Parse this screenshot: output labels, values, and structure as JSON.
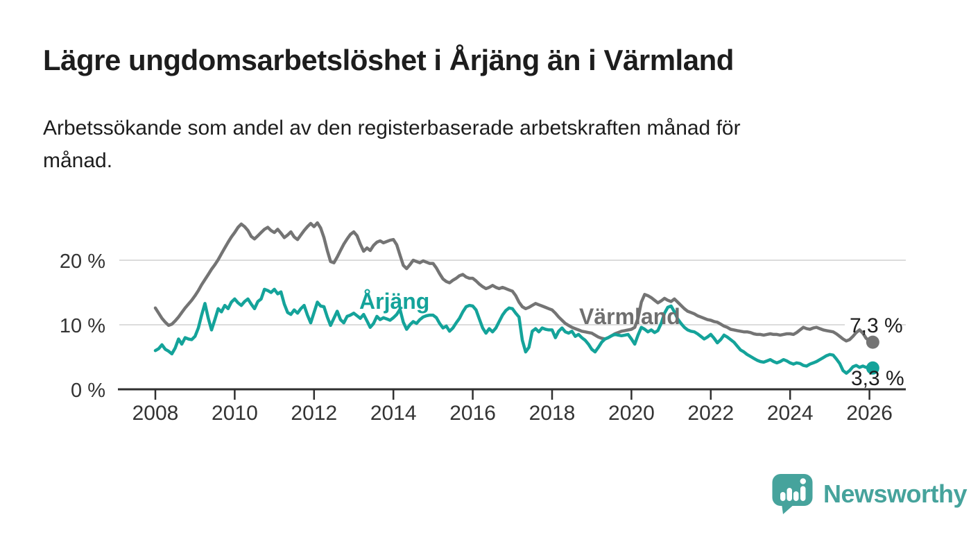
{
  "header": {
    "title": "Lägre ungdomsarbetslöshet i Årjäng än i Värmland",
    "subtitle_lines": [
      "Arbetssökande som andel av den registerbaserade arbetskraften månad för",
      "månad."
    ]
  },
  "chart_data": {
    "type": "line",
    "title": "Lägre ungdomsarbetslöshet i Årjäng än i Värmland",
    "subtitle": "Arbetssökande som andel av den registerbaserade arbetskraften månad för månad.",
    "unit": "%",
    "x_start": "2008-01",
    "x_end": "2026-02",
    "x_interval": "monthly",
    "xlim": [
      2008,
      2026.9
    ],
    "ylim": [
      0,
      27
    ],
    "grid": "horizontal-only",
    "legend_position": "inline-labels-on-chart",
    "y_ticks": [
      {
        "value": 0,
        "label": "0 %"
      },
      {
        "value": 10,
        "label": "10 %"
      },
      {
        "value": 20,
        "label": "20 %"
      }
    ],
    "x_ticks": [
      {
        "year": 2008,
        "label": "2008"
      },
      {
        "year": 2010,
        "label": "2010"
      },
      {
        "year": 2012,
        "label": "2012"
      },
      {
        "year": 2014,
        "label": "2014"
      },
      {
        "year": 2016,
        "label": "2016"
      },
      {
        "year": 2018,
        "label": "2018"
      },
      {
        "year": 2020,
        "label": "2020"
      },
      {
        "year": 2022,
        "label": "2022"
      },
      {
        "year": 2024,
        "label": "2024"
      },
      {
        "year": 2026,
        "label": "2026"
      }
    ],
    "series": [
      {
        "id": "varmland",
        "name": "Värmland",
        "color": "#747474",
        "label_color": "#6f6f6f",
        "end_label": "7,3 %",
        "last_value": 7.3,
        "values": [
          12.6,
          11.8,
          11.0,
          10.4,
          9.9,
          10.1,
          10.6,
          11.2,
          11.9,
          12.6,
          13.2,
          13.8,
          14.5,
          15.3,
          16.2,
          17.0,
          17.8,
          18.6,
          19.3,
          20.1,
          21.0,
          21.9,
          22.8,
          23.6,
          24.3,
          25.1,
          25.6,
          25.2,
          24.6,
          23.7,
          23.3,
          23.8,
          24.3,
          24.8,
          25.1,
          24.6,
          24.3,
          24.8,
          24.2,
          23.5,
          23.9,
          24.4,
          23.6,
          23.2,
          23.9,
          24.6,
          25.2,
          25.7,
          25.2,
          25.8,
          25.0,
          23.5,
          21.5,
          19.8,
          19.6,
          20.5,
          21.5,
          22.5,
          23.3,
          24.0,
          24.4,
          23.8,
          22.5,
          21.4,
          21.9,
          21.5,
          22.3,
          22.8,
          23.0,
          22.7,
          22.9,
          23.1,
          23.2,
          22.4,
          20.8,
          19.2,
          18.7,
          19.3,
          20.0,
          19.8,
          19.6,
          19.9,
          19.7,
          19.5,
          19.5,
          18.8,
          17.9,
          17.1,
          16.7,
          16.5,
          16.9,
          17.2,
          17.6,
          17.8,
          17.4,
          17.2,
          17.2,
          16.8,
          16.3,
          15.9,
          15.6,
          15.8,
          16.1,
          15.8,
          15.6,
          15.8,
          15.6,
          15.4,
          15.2,
          14.5,
          13.5,
          12.8,
          12.5,
          12.7,
          13.0,
          13.3,
          13.1,
          12.9,
          12.7,
          12.5,
          12.3,
          11.8,
          11.2,
          10.7,
          10.2,
          9.9,
          9.6,
          9.4,
          9.2,
          9.0,
          8.9,
          8.8,
          8.7,
          8.4,
          8.1,
          7.9,
          7.8,
          8.0,
          8.3,
          8.6,
          8.8,
          9.0,
          9.1,
          9.2,
          9.3,
          9.6,
          11.0,
          13.5,
          14.7,
          14.5,
          14.2,
          13.8,
          13.4,
          13.7,
          14.1,
          13.8,
          13.6,
          14.0,
          13.5,
          13.0,
          12.5,
          12.1,
          11.9,
          11.7,
          11.4,
          11.2,
          11.0,
          10.8,
          10.7,
          10.5,
          10.4,
          10.1,
          9.8,
          9.6,
          9.3,
          9.2,
          9.1,
          9.0,
          8.9,
          8.9,
          8.8,
          8.6,
          8.5,
          8.5,
          8.4,
          8.5,
          8.6,
          8.5,
          8.5,
          8.4,
          8.5,
          8.6,
          8.6,
          8.5,
          8.8,
          9.2,
          9.6,
          9.4,
          9.3,
          9.5,
          9.6,
          9.4,
          9.2,
          9.1,
          9.0,
          8.9,
          8.6,
          8.2,
          7.8,
          7.5,
          7.7,
          8.2,
          8.8,
          9.2,
          8.7,
          7.9,
          7.5,
          7.3
        ]
      },
      {
        "id": "arjang",
        "name": "Årjäng",
        "color": "#14a39a",
        "label_color": "#14a39a",
        "end_label": "3,3 %",
        "last_value": 3.3,
        "values": [
          6.0,
          6.3,
          6.9,
          6.2,
          5.9,
          5.5,
          6.4,
          7.8,
          7.0,
          8.0,
          7.8,
          7.7,
          8.2,
          9.5,
          11.5,
          13.3,
          11.0,
          9.2,
          10.8,
          12.5,
          12.0,
          13.0,
          12.5,
          13.5,
          14.0,
          13.4,
          13.0,
          13.6,
          14.0,
          13.2,
          12.5,
          13.6,
          14.0,
          15.5,
          15.3,
          15.0,
          15.5,
          14.8,
          15.1,
          13.2,
          11.9,
          11.6,
          12.3,
          11.8,
          12.5,
          13.0,
          11.5,
          10.3,
          11.9,
          13.5,
          12.9,
          12.8,
          11.2,
          9.9,
          11.0,
          12.1,
          10.8,
          10.3,
          11.3,
          11.5,
          11.8,
          11.4,
          11.0,
          11.6,
          10.6,
          9.6,
          10.2,
          11.3,
          10.8,
          11.1,
          10.9,
          10.7,
          11.1,
          11.6,
          12.4,
          10.4,
          9.3,
          10.0,
          10.5,
          10.2,
          10.8,
          11.2,
          11.4,
          11.5,
          11.5,
          11.1,
          10.2,
          9.5,
          9.8,
          9.0,
          9.5,
          10.3,
          11.0,
          12.0,
          12.8,
          13.0,
          12.9,
          12.3,
          10.9,
          9.5,
          8.7,
          9.4,
          8.9,
          9.5,
          10.5,
          11.5,
          12.2,
          12.6,
          12.5,
          11.8,
          11.2,
          7.6,
          5.8,
          6.5,
          9.0,
          9.4,
          8.9,
          9.5,
          9.3,
          9.2,
          9.2,
          8.0,
          9.0,
          9.5,
          8.9,
          8.7,
          9.0,
          8.2,
          8.5,
          8.0,
          7.6,
          7.0,
          6.2,
          5.8,
          6.5,
          7.3,
          7.8,
          8.0,
          8.3,
          8.5,
          8.4,
          8.3,
          8.4,
          8.5,
          7.8,
          7.0,
          8.4,
          9.6,
          9.3,
          8.9,
          9.2,
          8.8,
          9.1,
          10.2,
          11.8,
          12.7,
          12.9,
          12.0,
          10.9,
          10.2,
          9.6,
          9.2,
          9.0,
          8.9,
          8.6,
          8.2,
          7.8,
          8.1,
          8.5,
          7.9,
          7.2,
          7.7,
          8.4,
          8.1,
          7.7,
          7.3,
          6.7,
          6.1,
          5.8,
          5.4,
          5.1,
          4.8,
          4.5,
          4.3,
          4.2,
          4.4,
          4.6,
          4.3,
          4.1,
          4.3,
          4.6,
          4.4,
          4.1,
          3.9,
          4.1,
          4.0,
          3.7,
          3.6,
          3.9,
          4.1,
          4.3,
          4.6,
          4.9,
          5.2,
          5.4,
          5.3,
          4.7,
          4.0,
          2.9,
          2.5,
          2.9,
          3.5,
          3.7,
          3.4,
          3.6,
          3.4,
          3.5,
          3.3
        ]
      }
    ]
  },
  "footer": {
    "brand": "Newsworthy"
  },
  "colors": {
    "arjang": "#14a39a",
    "varmland": "#747474",
    "varmland_label": "#6f6f6f",
    "brand_teal": "#46a39c",
    "grid": "#dcdcdc",
    "axis": "#2f2f2f",
    "text": "#1d1d1d",
    "tick_text": "#333333"
  }
}
